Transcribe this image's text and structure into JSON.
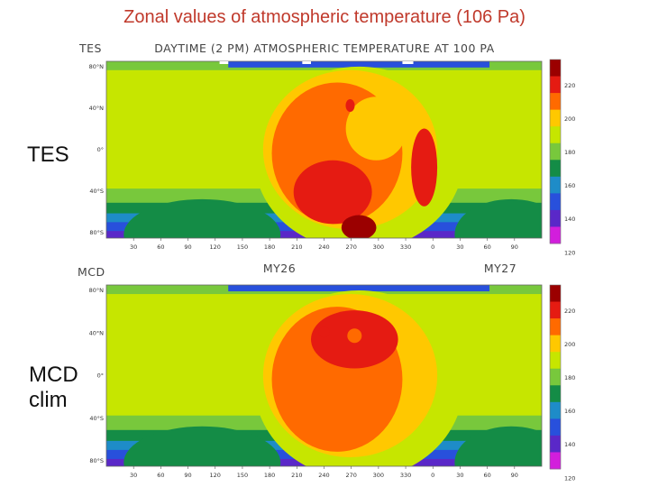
{
  "slide_title": "Zonal values of atmospheric  temperature (106 Pa)",
  "labels": {
    "tes": "TES",
    "mcd_line1": "MCD",
    "mcd_line2": "clim"
  },
  "panels": [
    {
      "corner_label": "TES",
      "header": "DAYTIME (2 PM) ATMOSPHERIC TEMPERATURE AT 100 PA",
      "below_left": "MY26",
      "below_right": "MY27"
    },
    {
      "corner_label": "MCD",
      "header": "",
      "below_left": "",
      "below_right": ""
    }
  ],
  "chart_data": [
    {
      "type": "heatmap",
      "title": "DAYTIME (2 PM) ATMOSPHERIC TEMPERATURE AT 100 PA",
      "x_ticks": [
        "30",
        "60",
        "90",
        "120",
        "150",
        "180",
        "210",
        "240",
        "270",
        "300",
        "330",
        "0",
        "30",
        "60",
        "90"
      ],
      "y_ticks": [
        "80°N",
        "40°N",
        "0°",
        "40°S",
        "80°S"
      ],
      "colorbar": {
        "ticks": [
          "220",
          "200",
          "180",
          "160",
          "140",
          "120"
        ],
        "colors": [
          "#9b0000",
          "#e51b12",
          "#ff6a00",
          "#ffc800",
          "#c6e600",
          "#78c83c",
          "#148c46",
          "#1e8cc8",
          "#2850dc",
          "#5a28c8",
          "#d21edc"
        ]
      },
      "series_labels": [
        "MY26",
        "MY27"
      ]
    },
    {
      "type": "heatmap",
      "title": "",
      "x_ticks": [
        "30",
        "60",
        "90",
        "120",
        "150",
        "180",
        "210",
        "240",
        "270",
        "300",
        "330",
        "0",
        "30",
        "60",
        "90"
      ],
      "y_ticks": [
        "80°N",
        "40°N",
        "0°",
        "40°S",
        "80°S"
      ],
      "colorbar": {
        "ticks": [
          "220",
          "200",
          "180",
          "160",
          "140",
          "120"
        ],
        "colors": [
          "#9b0000",
          "#e51b12",
          "#ff6a00",
          "#ffc800",
          "#c6e600",
          "#78c83c",
          "#148c46",
          "#1e8cc8",
          "#2850dc",
          "#5a28c8",
          "#d21edc"
        ]
      }
    }
  ]
}
